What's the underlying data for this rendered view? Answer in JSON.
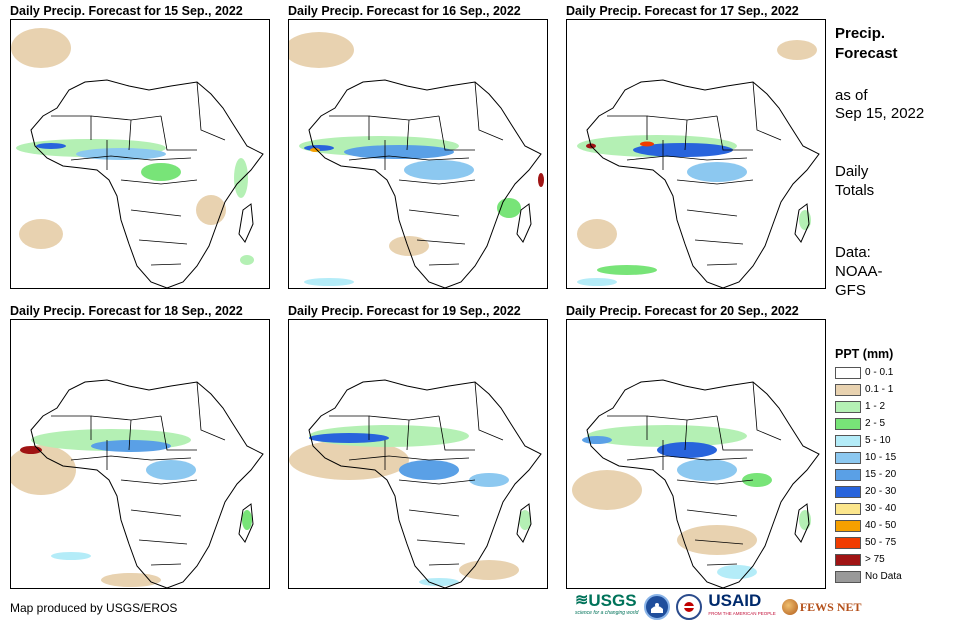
{
  "panels": [
    {
      "title": "Daily Precip. Forecast for 15 Sep., 2022"
    },
    {
      "title": "Daily Precip. Forecast for 16 Sep., 2022"
    },
    {
      "title": "Daily Precip. Forecast for 17 Sep., 2022"
    },
    {
      "title": "Daily Precip. Forecast for 18 Sep., 2022"
    },
    {
      "title": "Daily Precip. Forecast for 19 Sep., 2022"
    },
    {
      "title": "Daily Precip. Forecast for 20 Sep., 2022"
    }
  ],
  "side": {
    "title_line1": "Precip.",
    "title_line2": "Forecast",
    "asof_line1": "as of",
    "asof_line2": "Sep 15, 2022",
    "totals_line1": "Daily",
    "totals_line2": "Totals",
    "data_line1": "Data:",
    "data_line2": "NOAA-",
    "data_line3": "GFS"
  },
  "legend": {
    "title": "PPT (mm)",
    "items": [
      {
        "label": "0 - 0.1",
        "color": "#ffffff"
      },
      {
        "label": "0.1 - 1",
        "color": "#e8d2b0"
      },
      {
        "label": "1 - 2",
        "color": "#b4f0b4"
      },
      {
        "label": "2 - 5",
        "color": "#78e478"
      },
      {
        "label": "5 - 10",
        "color": "#b4ecf8"
      },
      {
        "label": "10 - 15",
        "color": "#8cc8f0"
      },
      {
        "label": "15 - 20",
        "color": "#5aa0e6"
      },
      {
        "label": "20 - 30",
        "color": "#2864dc"
      },
      {
        "label": "30 - 40",
        "color": "#fce68c"
      },
      {
        "label": "40 - 50",
        "color": "#f5a000"
      },
      {
        "label": "50 - 75",
        "color": "#f03c00"
      },
      {
        "label": "> 75",
        "color": "#a01414"
      },
      {
        "label": "No Data",
        "color": "#999999"
      }
    ]
  },
  "credit": "Map produced by USGS/EROS",
  "logos": {
    "usgs": "USGS",
    "usgs_tagline": "science for a changing world",
    "usaid": "USAID",
    "usaid_tagline": "FROM THE AMERICAN PEOPLE",
    "fews": "FEWS NET"
  }
}
